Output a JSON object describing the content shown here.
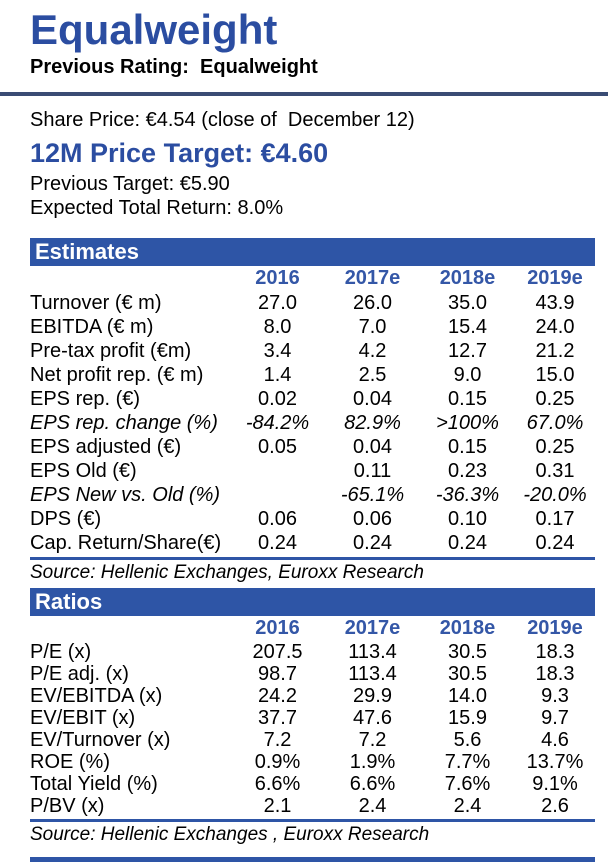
{
  "header": {
    "rating": "Equalweight",
    "previous_rating": "Previous Rating:  Equalweight"
  },
  "summary": {
    "share_price": "Share Price: €4.54 (close of  December 12)",
    "price_target": "12M Price Target: €4.60",
    "previous_target": "Previous Target: €5.90",
    "expected_total_return": "Expected Total Return: 8.0%"
  },
  "colors": {
    "accent_blue": "#2E55A6",
    "title_blue": "#2B4DA1",
    "navy_rule": "#3A4C74",
    "year_header_blue": "#3457A7"
  },
  "tables": {
    "estimates": {
      "title": "Estimates",
      "years": [
        "2016",
        "2017e",
        "2018e",
        "2019e"
      ],
      "rows": [
        {
          "label": "Turnover (€ m)",
          "italic": false,
          "values": [
            "27.0",
            "26.0",
            "35.0",
            "43.9"
          ]
        },
        {
          "label": "EBITDA (€ m)",
          "italic": false,
          "values": [
            "8.0",
            "7.0",
            "15.4",
            "24.0"
          ]
        },
        {
          "label": "Pre-tax profit (€m)",
          "italic": false,
          "values": [
            "3.4",
            "4.2",
            "12.7",
            "21.2"
          ]
        },
        {
          "label": "Net profit rep. (€ m)",
          "italic": false,
          "values": [
            "1.4",
            "2.5",
            "9.0",
            "15.0"
          ]
        },
        {
          "label": "EPS rep. (€)",
          "italic": false,
          "values": [
            "0.02",
            "0.04",
            "0.15",
            "0.25"
          ]
        },
        {
          "label": "EPS rep. change (%)",
          "italic": true,
          "values": [
            "-84.2%",
            "82.9%",
            ">100%",
            "67.0%"
          ]
        },
        {
          "label": "EPS adjusted (€)",
          "italic": false,
          "values": [
            "0.05",
            "0.04",
            "0.15",
            "0.25"
          ]
        },
        {
          "label": "EPS Old (€)",
          "italic": false,
          "values": [
            "",
            "0.11",
            "0.23",
            "0.31"
          ]
        },
        {
          "label": "EPS New vs. Old (%)",
          "italic": true,
          "values": [
            "",
            "-65.1%",
            "-36.3%",
            "-20.0%"
          ]
        },
        {
          "label": "DPS (€)",
          "italic": false,
          "values": [
            "0.06",
            "0.06",
            "0.10",
            "0.17"
          ]
        },
        {
          "label": "Cap. Return/Share(€)",
          "italic": false,
          "values": [
            "0.24",
            "0.24",
            "0.24",
            "0.24"
          ]
        }
      ],
      "source": "Source: Hellenic Exchanges, Euroxx Research"
    },
    "ratios": {
      "title": "Ratios",
      "years": [
        "2016",
        "2017e",
        "2018e",
        "2019e"
      ],
      "rows": [
        {
          "label": "P/E (x)",
          "italic": false,
          "values": [
            "207.5",
            "113.4",
            "30.5",
            "18.3"
          ]
        },
        {
          "label": "P/E adj. (x)",
          "italic": false,
          "values": [
            "98.7",
            "113.4",
            "30.5",
            "18.3"
          ]
        },
        {
          "label": "EV/EBITDA (x)",
          "italic": false,
          "values": [
            "24.2",
            "29.9",
            "14.0",
            "9.3"
          ]
        },
        {
          "label": "EV/EBIT (x)",
          "italic": false,
          "values": [
            "37.7",
            "47.6",
            "15.9",
            "9.7"
          ]
        },
        {
          "label": "EV/Turnover (x)",
          "italic": false,
          "values": [
            "7.2",
            "7.2",
            "5.6",
            "4.6"
          ]
        },
        {
          "label": "ROE (%)",
          "italic": false,
          "values": [
            "0.9%",
            "1.9%",
            "7.7%",
            "13.7%"
          ]
        },
        {
          "label": "Total Yield (%)",
          "italic": false,
          "values": [
            "6.6%",
            "6.6%",
            "7.6%",
            "9.1%"
          ]
        },
        {
          "label": "P/BV (x)",
          "italic": false,
          "values": [
            "2.1",
            "2.4",
            "2.4",
            "2.6"
          ]
        }
      ],
      "source": "Source: Hellenic Exchanges , Euroxx Research"
    }
  }
}
